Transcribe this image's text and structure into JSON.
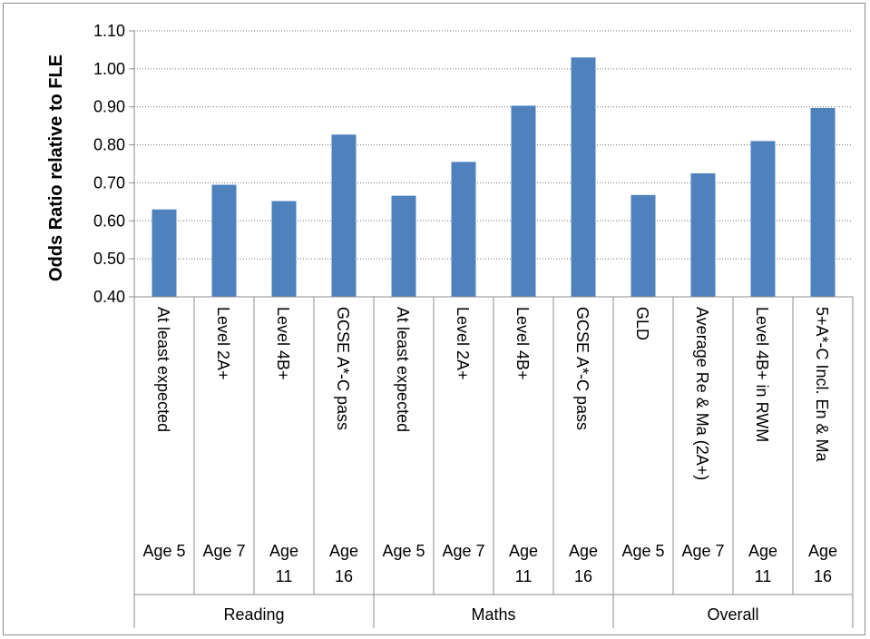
{
  "chart_data": {
    "type": "bar",
    "ylabel": "Odds Ratio relative to FLE",
    "ylim": [
      0.4,
      1.1
    ],
    "yticks": [
      "0.40",
      "0.50",
      "0.60",
      "0.70",
      "0.80",
      "0.90",
      "1.00",
      "1.10"
    ],
    "grid": true,
    "bar_color": "#4f81bd",
    "series": [
      {
        "values": [
          0.63,
          0.695,
          0.652,
          0.827,
          0.666,
          0.755,
          0.903,
          1.03,
          0.668,
          0.725,
          0.81,
          0.897
        ]
      }
    ],
    "categories": [
      {
        "outcome": "At least expected",
        "age": [
          "Age 5"
        ],
        "group": "Reading"
      },
      {
        "outcome": "Level 2A+",
        "age": [
          "Age 7"
        ],
        "group": "Reading"
      },
      {
        "outcome": "Level 4B+",
        "age": [
          "Age",
          "11"
        ],
        "group": "Reading"
      },
      {
        "outcome": "GCSE A*-C pass",
        "age": [
          "Age",
          "16"
        ],
        "group": "Reading"
      },
      {
        "outcome": "At least expected",
        "age": [
          "Age 5"
        ],
        "group": "Maths"
      },
      {
        "outcome": "Level 2A+",
        "age": [
          "Age 7"
        ],
        "group": "Maths"
      },
      {
        "outcome": "Level 4B+",
        "age": [
          "Age",
          "11"
        ],
        "group": "Maths"
      },
      {
        "outcome": "GCSE A*-C pass",
        "age": [
          "Age",
          "16"
        ],
        "group": "Maths"
      },
      {
        "outcome": "GLD",
        "age": [
          "Age 5"
        ],
        "group": "Overall"
      },
      {
        "outcome": "Average Re & Ma (2A+)",
        "age": [
          "Age 7"
        ],
        "group": "Overall"
      },
      {
        "outcome": "Level 4B+ in RWM",
        "age": [
          "Age",
          "11"
        ],
        "group": "Overall"
      },
      {
        "outcome": "5+A*-C Incl. En & Ma",
        "age": [
          "Age",
          "16"
        ],
        "group": "Overall"
      }
    ],
    "groups": [
      "Reading",
      "Maths",
      "Overall"
    ]
  }
}
